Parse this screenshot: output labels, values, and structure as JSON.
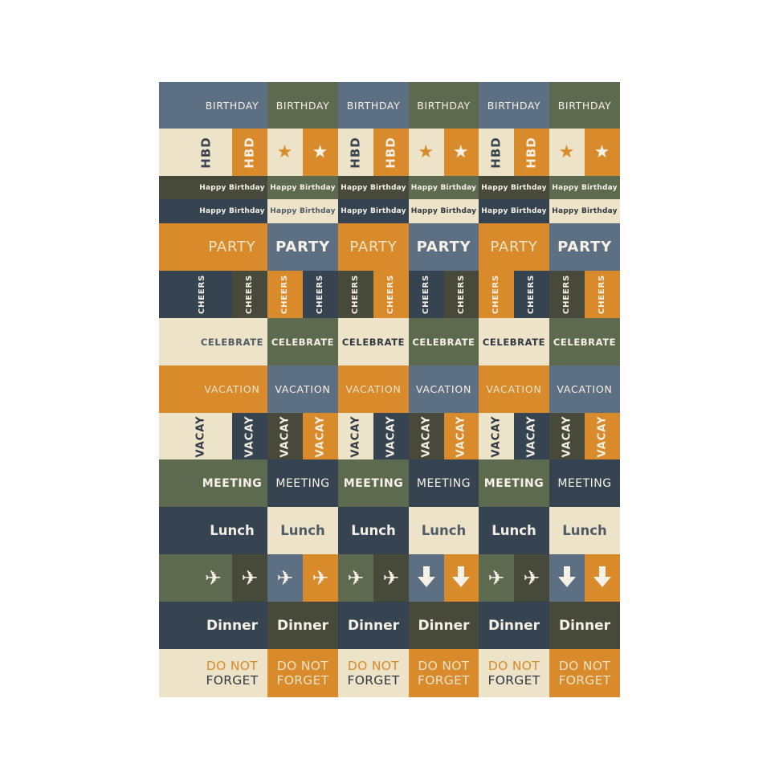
{
  "palette": {
    "slate": "#5d6f82",
    "olive": "#5e6a50",
    "orange": "#d98a2b",
    "cream": "#ede3c8",
    "navy": "#364350",
    "dkolive": "#474a3a",
    "white": "#f6f1e6",
    "dark": "#2f3843",
    "muted": "#4f5b66"
  },
  "rows": [
    {
      "style": "birthday",
      "cells": [
        {
          "text": "BIRTHDAY",
          "bg": "slate",
          "fg": "white"
        },
        {
          "text": "BIRTHDAY",
          "bg": "olive",
          "fg": "white"
        },
        {
          "text": "BIRTHDAY",
          "bg": "slate",
          "fg": "white"
        },
        {
          "text": "BIRTHDAY",
          "bg": "olive",
          "fg": "white"
        },
        {
          "text": "BIRTHDAY",
          "bg": "slate",
          "fg": "white"
        },
        {
          "text": "BIRTHDAY",
          "bg": "olive",
          "fg": "white"
        }
      ]
    },
    {
      "style": "hbd",
      "halves": [
        {
          "text": "HBD",
          "bg": "cream",
          "fg": "navy"
        },
        {
          "text": "HBD",
          "bg": "orange",
          "fg": "white"
        },
        {
          "icon": "star-icon",
          "bg": "cream",
          "fg": "orange"
        },
        {
          "icon": "star-icon",
          "bg": "orange",
          "fg": "white"
        },
        {
          "text": "HBD",
          "bg": "cream",
          "fg": "navy"
        },
        {
          "text": "HBD",
          "bg": "orange",
          "fg": "white"
        },
        {
          "icon": "star-icon",
          "bg": "cream",
          "fg": "orange"
        },
        {
          "icon": "star-icon",
          "bg": "orange",
          "fg": "white"
        },
        {
          "text": "HBD",
          "bg": "cream",
          "fg": "navy"
        },
        {
          "text": "HBD",
          "bg": "orange",
          "fg": "white"
        },
        {
          "icon": "star-icon",
          "bg": "cream",
          "fg": "orange"
        },
        {
          "icon": "star-icon",
          "bg": "orange",
          "fg": "white"
        }
      ]
    },
    {
      "style": "happy",
      "cells": [
        {
          "text": "Happy Birthday",
          "bg": "dkolive",
          "fg": "white"
        },
        {
          "text": "Happy Birthday",
          "bg": "olive",
          "fg": "white"
        },
        {
          "text": "Happy Birthday",
          "bg": "dkolive",
          "fg": "white"
        },
        {
          "text": "Happy Birthday",
          "bg": "olive",
          "fg": "white"
        },
        {
          "text": "Happy Birthday",
          "bg": "dkolive",
          "fg": "white"
        },
        {
          "text": "Happy Birthday",
          "bg": "olive",
          "fg": "white"
        }
      ]
    },
    {
      "style": "happy",
      "cells": [
        {
          "text": "Happy Birthday",
          "bg": "navy",
          "fg": "white"
        },
        {
          "text": "Happy Birthday",
          "bg": "cream",
          "fg": "muted"
        },
        {
          "text": "Happy Birthday",
          "bg": "navy",
          "fg": "white"
        },
        {
          "text": "Happy Birthday",
          "bg": "cream",
          "fg": "dark"
        },
        {
          "text": "Happy Birthday",
          "bg": "navy",
          "fg": "white"
        },
        {
          "text": "Happy Birthday",
          "bg": "cream",
          "fg": "dark"
        }
      ]
    },
    {
      "style": "party",
      "cells": [
        {
          "text": "PARTY",
          "bg": "orange",
          "fg": "cream",
          "weight": "normal"
        },
        {
          "text": "PARTY",
          "bg": "slate",
          "fg": "white",
          "weight": "bold"
        },
        {
          "text": "PARTY",
          "bg": "orange",
          "fg": "cream",
          "weight": "normal"
        },
        {
          "text": "PARTY",
          "bg": "slate",
          "fg": "white",
          "weight": "bold"
        },
        {
          "text": "PARTY",
          "bg": "orange",
          "fg": "cream",
          "weight": "normal"
        },
        {
          "text": "PARTY",
          "bg": "slate",
          "fg": "white",
          "weight": "bold"
        }
      ]
    },
    {
      "style": "cheers",
      "halves": [
        {
          "text": "CHEERS",
          "bg": "navy",
          "fg": "white"
        },
        {
          "text": "CHEERS",
          "bg": "dkolive",
          "fg": "white"
        },
        {
          "text": "CHEERS",
          "bg": "orange",
          "fg": "white"
        },
        {
          "text": "CHEERS",
          "bg": "navy",
          "fg": "white"
        },
        {
          "text": "CHEERS",
          "bg": "dkolive",
          "fg": "white"
        },
        {
          "text": "CHEERS",
          "bg": "orange",
          "fg": "white"
        },
        {
          "text": "CHEERS",
          "bg": "navy",
          "fg": "white"
        },
        {
          "text": "CHEERS",
          "bg": "dkolive",
          "fg": "white"
        },
        {
          "text": "CHEERS",
          "bg": "orange",
          "fg": "white"
        },
        {
          "text": "CHEERS",
          "bg": "navy",
          "fg": "white"
        },
        {
          "text": "CHEERS",
          "bg": "dkolive",
          "fg": "white"
        },
        {
          "text": "CHEERS",
          "bg": "orange",
          "fg": "white"
        }
      ]
    },
    {
      "style": "celebrate",
      "cells": [
        {
          "text": "CELEBRATE",
          "bg": "cream",
          "fg": "muted"
        },
        {
          "text": "CELEBRATE",
          "bg": "olive",
          "fg": "white"
        },
        {
          "text": "CELEBRATE",
          "bg": "cream",
          "fg": "dark"
        },
        {
          "text": "CELEBRATE",
          "bg": "olive",
          "fg": "white"
        },
        {
          "text": "CELEBRATE",
          "bg": "cream",
          "fg": "dark"
        },
        {
          "text": "CELEBRATE",
          "bg": "olive",
          "fg": "white"
        }
      ]
    },
    {
      "style": "vacation",
      "cells": [
        {
          "text": "VACATION",
          "bg": "orange",
          "fg": "cream"
        },
        {
          "text": "VACATION",
          "bg": "slate",
          "fg": "white"
        },
        {
          "text": "VACATION",
          "bg": "orange",
          "fg": "cream"
        },
        {
          "text": "VACATION",
          "bg": "slate",
          "fg": "white"
        },
        {
          "text": "VACATION",
          "bg": "orange",
          "fg": "cream"
        },
        {
          "text": "VACATION",
          "bg": "slate",
          "fg": "white"
        }
      ]
    },
    {
      "style": "vacay",
      "halves": [
        {
          "text": "VACAY",
          "bg": "cream",
          "fg": "dark"
        },
        {
          "text": "VACAY",
          "bg": "navy",
          "fg": "white"
        },
        {
          "text": "VACAY",
          "bg": "dkolive",
          "fg": "white"
        },
        {
          "text": "VACAY",
          "bg": "orange",
          "fg": "white"
        },
        {
          "text": "VACAY",
          "bg": "cream",
          "fg": "dark"
        },
        {
          "text": "VACAY",
          "bg": "navy",
          "fg": "white"
        },
        {
          "text": "VACAY",
          "bg": "dkolive",
          "fg": "white"
        },
        {
          "text": "VACAY",
          "bg": "orange",
          "fg": "white"
        },
        {
          "text": "VACAY",
          "bg": "cream",
          "fg": "dark"
        },
        {
          "text": "VACAY",
          "bg": "navy",
          "fg": "white"
        },
        {
          "text": "VACAY",
          "bg": "dkolive",
          "fg": "white"
        },
        {
          "text": "VACAY",
          "bg": "orange",
          "fg": "white"
        }
      ]
    },
    {
      "style": "meeting",
      "cells": [
        {
          "text": "MEETING",
          "bg": "olive",
          "fg": "white",
          "weight": "bold"
        },
        {
          "text": "MEETING",
          "bg": "navy",
          "fg": "white",
          "weight": "normal"
        },
        {
          "text": "MEETING",
          "bg": "olive",
          "fg": "white",
          "weight": "bold"
        },
        {
          "text": "MEETING",
          "bg": "navy",
          "fg": "white",
          "weight": "normal"
        },
        {
          "text": "MEETING",
          "bg": "olive",
          "fg": "white",
          "weight": "bold"
        },
        {
          "text": "MEETING",
          "bg": "navy",
          "fg": "white",
          "weight": "normal"
        }
      ]
    },
    {
      "style": "lunch",
      "cells": [
        {
          "text": "Lunch",
          "bg": "navy",
          "fg": "white"
        },
        {
          "text": "Lunch",
          "bg": "cream",
          "fg": "muted"
        },
        {
          "text": "Lunch",
          "bg": "navy",
          "fg": "white"
        },
        {
          "text": "Lunch",
          "bg": "cream",
          "fg": "muted"
        },
        {
          "text": "Lunch",
          "bg": "navy",
          "fg": "white"
        },
        {
          "text": "Lunch",
          "bg": "cream",
          "fg": "muted"
        }
      ]
    },
    {
      "style": "icons",
      "halves": [
        {
          "icon": "airplane-icon",
          "bg": "olive",
          "fg": "white"
        },
        {
          "icon": "airplane-icon",
          "bg": "dkolive",
          "fg": "white"
        },
        {
          "icon": "airplane-icon",
          "bg": "slate",
          "fg": "white"
        },
        {
          "icon": "airplane-icon",
          "bg": "orange",
          "fg": "white"
        },
        {
          "icon": "airplane-icon",
          "bg": "olive",
          "fg": "white"
        },
        {
          "icon": "airplane-icon",
          "bg": "dkolive",
          "fg": "white"
        },
        {
          "icon": "arrow-down-icon",
          "bg": "slate",
          "fg": "white"
        },
        {
          "icon": "arrow-down-icon",
          "bg": "orange",
          "fg": "white"
        },
        {
          "icon": "airplane-icon",
          "bg": "olive",
          "fg": "white"
        },
        {
          "icon": "airplane-icon",
          "bg": "dkolive",
          "fg": "white"
        },
        {
          "icon": "arrow-down-icon",
          "bg": "slate",
          "fg": "white"
        },
        {
          "icon": "arrow-down-icon",
          "bg": "orange",
          "fg": "white"
        }
      ]
    },
    {
      "style": "dinner",
      "cells": [
        {
          "text": "Dinner",
          "bg": "navy",
          "fg": "white"
        },
        {
          "text": "Dinner",
          "bg": "dkolive",
          "fg": "white"
        },
        {
          "text": "Dinner",
          "bg": "navy",
          "fg": "white"
        },
        {
          "text": "Dinner",
          "bg": "dkolive",
          "fg": "white"
        },
        {
          "text": "Dinner",
          "bg": "navy",
          "fg": "white"
        },
        {
          "text": "Dinner",
          "bg": "dkolive",
          "fg": "white"
        }
      ]
    },
    {
      "style": "dnf",
      "cells": [
        {
          "lines": [
            "DO NOT",
            "FORGET"
          ],
          "bg": "cream",
          "fg": "orange",
          "fg2": "dark"
        },
        {
          "lines": [
            "DO NOT",
            "FORGET"
          ],
          "bg": "orange",
          "fg": "cream",
          "fg2": "cream"
        },
        {
          "lines": [
            "DO NOT",
            "FORGET"
          ],
          "bg": "cream",
          "fg": "orange",
          "fg2": "dark"
        },
        {
          "lines": [
            "DO NOT",
            "FORGET"
          ],
          "bg": "orange",
          "fg": "cream",
          "fg2": "cream"
        },
        {
          "lines": [
            "DO NOT",
            "FORGET"
          ],
          "bg": "cream",
          "fg": "orange",
          "fg2": "dark"
        },
        {
          "lines": [
            "DO NOT",
            "FORGET"
          ],
          "bg": "orange",
          "fg": "cream",
          "fg2": "cream"
        }
      ]
    }
  ]
}
